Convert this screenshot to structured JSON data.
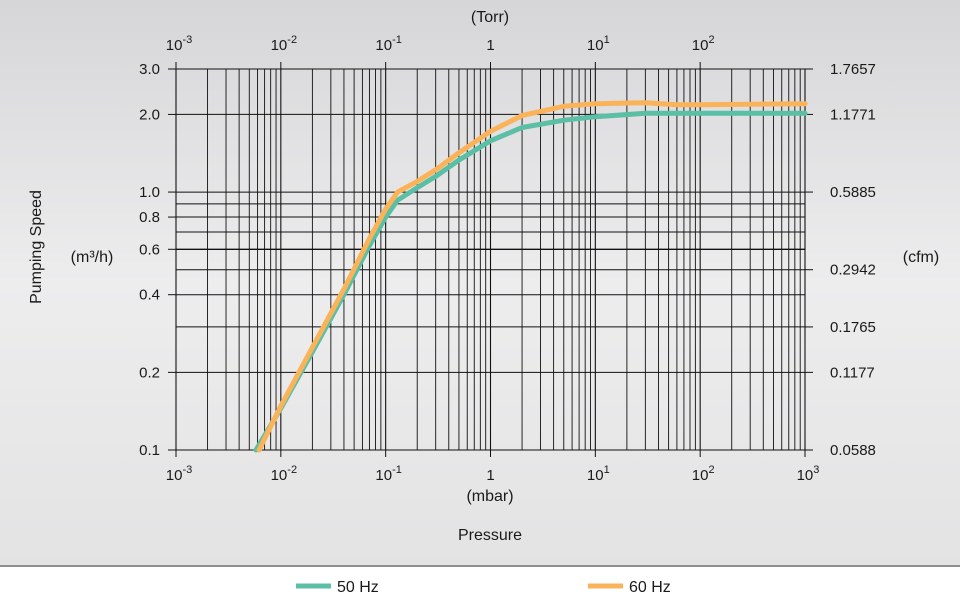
{
  "chart_data": {
    "type": "line",
    "xlabel": "Pressure",
    "x_unit_bottom": "(mbar)",
    "x_unit_top": "(Torr)",
    "ylabel": "Pumping Speed",
    "y_unit_left": "(m³/h)",
    "y_unit_right": "(cfm)",
    "x_scale": "log",
    "y_scale": "log",
    "xlim": [
      0.001,
      1000
    ],
    "ylim": [
      0.1,
      3.0
    ],
    "grid": true,
    "legend_position": "bottom",
    "bottom_ticks": [
      {
        "value": 0.001,
        "base": "10",
        "exp": "-3"
      },
      {
        "value": 0.01,
        "base": "10",
        "exp": "-2"
      },
      {
        "value": 0.1,
        "base": "10",
        "exp": "-1"
      },
      {
        "value": 1,
        "base": "1",
        "exp": ""
      },
      {
        "value": 10,
        "base": "10",
        "exp": "1"
      },
      {
        "value": 100,
        "base": "10",
        "exp": "2"
      },
      {
        "value": 1000,
        "base": "10",
        "exp": "3"
      }
    ],
    "top_ticks": [
      {
        "value": 0.001,
        "base": "10",
        "exp": "-3"
      },
      {
        "value": 0.01,
        "base": "10",
        "exp": "-2"
      },
      {
        "value": 0.1,
        "base": "10",
        "exp": "-1"
      },
      {
        "value": 1,
        "base": "1",
        "exp": ""
      },
      {
        "value": 10,
        "base": "10",
        "exp": "1"
      },
      {
        "value": 100,
        "base": "10",
        "exp": "2"
      }
    ],
    "left_ticks": [
      {
        "value": 3.0,
        "label": "3.0"
      },
      {
        "value": 2.0,
        "label": "2.0"
      },
      {
        "value": 1.0,
        "label": "1.0"
      },
      {
        "value": 0.8,
        "label": "0.8"
      },
      {
        "value": 0.6,
        "label": "0.6"
      },
      {
        "value": 0.4,
        "label": "0.4"
      },
      {
        "value": 0.2,
        "label": "0.2"
      },
      {
        "value": 0.1,
        "label": "0.1"
      }
    ],
    "right_ticks": [
      {
        "value": 3.0,
        "label": "1.7657"
      },
      {
        "value": 2.0,
        "label": "1.1771"
      },
      {
        "value": 1.0,
        "label": "0.5885"
      },
      {
        "value": 0.5,
        "label": "0.2942"
      },
      {
        "value": 0.3,
        "label": "0.1765"
      },
      {
        "value": 0.2,
        "label": "0.1177"
      },
      {
        "value": 0.1,
        "label": "0.0588"
      }
    ],
    "series": [
      {
        "name": "50 Hz",
        "color": "#5bbfa5",
        "x": [
          0.0058,
          0.01,
          0.02,
          0.04,
          0.07,
          0.1,
          0.13,
          0.2,
          0.3,
          0.5,
          1,
          2,
          5,
          10,
          30,
          100,
          1000
        ],
        "y": [
          0.1,
          0.145,
          0.24,
          0.4,
          0.62,
          0.8,
          0.93,
          1.04,
          1.15,
          1.33,
          1.58,
          1.78,
          1.9,
          1.96,
          2.02,
          2.02,
          2.02
        ]
      },
      {
        "name": "60 Hz",
        "color": "#fbb35a",
        "x": [
          0.0062,
          0.01,
          0.02,
          0.04,
          0.07,
          0.1,
          0.13,
          0.2,
          0.3,
          0.5,
          1,
          2,
          5,
          10,
          30,
          60,
          100,
          1000
        ],
        "y": [
          0.1,
          0.148,
          0.25,
          0.42,
          0.66,
          0.86,
          1.0,
          1.1,
          1.22,
          1.42,
          1.72,
          1.98,
          2.15,
          2.2,
          2.22,
          2.18,
          2.18,
          2.2
        ]
      }
    ]
  }
}
